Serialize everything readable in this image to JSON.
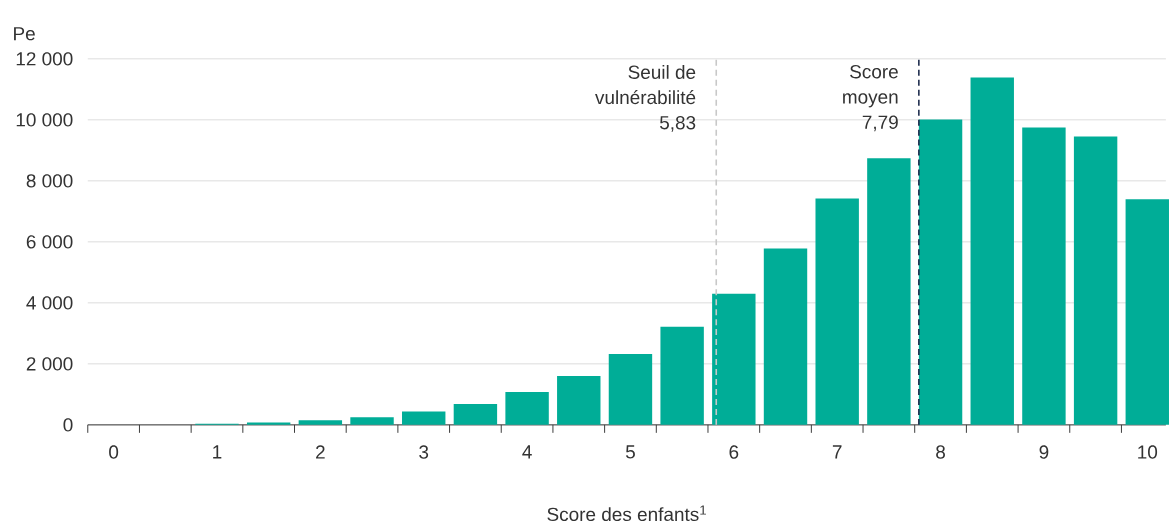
{
  "chart_data": {
    "type": "bar",
    "ylabel": "Pe",
    "xlabel": "Score des enfants$^{1}$",
    "x": [
      0,
      0.5,
      1,
      1.5,
      2,
      2.5,
      3,
      3.5,
      4,
      4.5,
      5,
      5.5,
      6,
      6.5,
      7,
      7.5,
      8,
      8.5,
      9,
      9.5,
      10
    ],
    "values": [
      0,
      0,
      40,
      80,
      150,
      250,
      440,
      680,
      1080,
      1600,
      2320,
      3220,
      4300,
      5780,
      7420,
      8740,
      10010,
      11390,
      9750,
      9450,
      7400
    ],
    "color": "#00ad97",
    "xlim": [
      -0.25,
      10.18
    ],
    "xticks": [
      0,
      1,
      2,
      3,
      4,
      5,
      6,
      7,
      8,
      9,
      10,
      {
        "value": -0.25,
        "label": null
      },
      {
        "value": 0.25,
        "label": null
      },
      {
        "value": 0.75,
        "label": null
      },
      {
        "value": 1.25,
        "label": null
      },
      {
        "value": 1.75,
        "label": null
      },
      {
        "value": 2.25,
        "label": null
      },
      {
        "value": 2.75,
        "label": null
      },
      {
        "value": 3.25,
        "label": null
      },
      {
        "value": 3.75,
        "label": null
      },
      {
        "value": 4.25,
        "label": null
      },
      {
        "value": 4.75,
        "label": null
      },
      {
        "value": 5.25,
        "label": null
      },
      {
        "value": 5.75,
        "label": null
      },
      {
        "value": 6.25,
        "label": null
      },
      {
        "value": 6.75,
        "label": null
      },
      {
        "value": 7.25,
        "label": null
      },
      {
        "value": 7.75,
        "label": null
      },
      {
        "value": 8.25,
        "label": null
      },
      {
        "value": 8.75,
        "label": null
      },
      {
        "value": 9.25,
        "label": null
      },
      {
        "value": 9.75,
        "label": null
      }
    ],
    "ylim": [
      0,
      12000
    ],
    "yticks": [
      {
        "value": 0,
        "label": "0"
      },
      {
        "value": 2000,
        "label": "2 000"
      },
      {
        "value": 4000,
        "label": "4 000"
      },
      {
        "value": 6000,
        "label": "6 000"
      },
      {
        "value": 8000,
        "label": "8 000"
      },
      {
        "value": 10000,
        "label": "10 000"
      },
      {
        "value": 12000,
        "label": "12 000"
      }
    ],
    "grid": "y",
    "ref_lines": [
      {
        "axis": "x",
        "value": 5.83,
        "label": "Seuil de vulnérabilité 5,83",
        "color": "#c8c8c8",
        "line_style": "dashed"
      },
      {
        "axis": "x",
        "value": 7.79,
        "label": "Score moyen 7,79",
        "color": "#1f2d4e",
        "line_style": "dashed"
      }
    ]
  }
}
